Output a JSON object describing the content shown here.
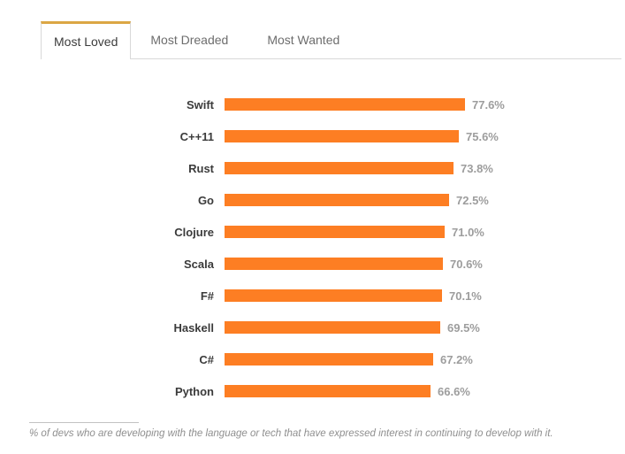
{
  "tabs": {
    "items": [
      {
        "label": "Most Loved",
        "active": true
      },
      {
        "label": "Most Dreaded",
        "active": false
      },
      {
        "label": "Most Wanted",
        "active": false
      }
    ]
  },
  "chart_data": {
    "type": "bar",
    "orientation": "horizontal",
    "title": "Most Loved",
    "categories": [
      "Swift",
      "C++11",
      "Rust",
      "Go",
      "Clojure",
      "Scala",
      "F#",
      "Haskell",
      "C#",
      "Python"
    ],
    "values": [
      77.6,
      75.6,
      73.8,
      72.5,
      71.0,
      70.6,
      70.1,
      69.5,
      67.2,
      66.6
    ],
    "value_labels": [
      "77.6%",
      "75.6%",
      "73.8%",
      "72.5%",
      "71.0%",
      "70.6%",
      "70.1%",
      "69.5%",
      "67.2%",
      "66.6%"
    ],
    "xlim": [
      0,
      80
    ],
    "grid": false,
    "legend": false,
    "bar_color": "#fd7e23",
    "value_label_color": "#9d9d9d",
    "category_label_color": "#3b3b3b"
  },
  "footer": {
    "note": "% of devs who are developing with the language or tech that have expressed interest in continuing to develop with it."
  },
  "colors": {
    "accent_bar": "#fd7e23",
    "tab_active_top_border": "#dba644",
    "tab_border": "#d9d9d9",
    "tab_bar_bottom_border": "#d8d8d8"
  }
}
